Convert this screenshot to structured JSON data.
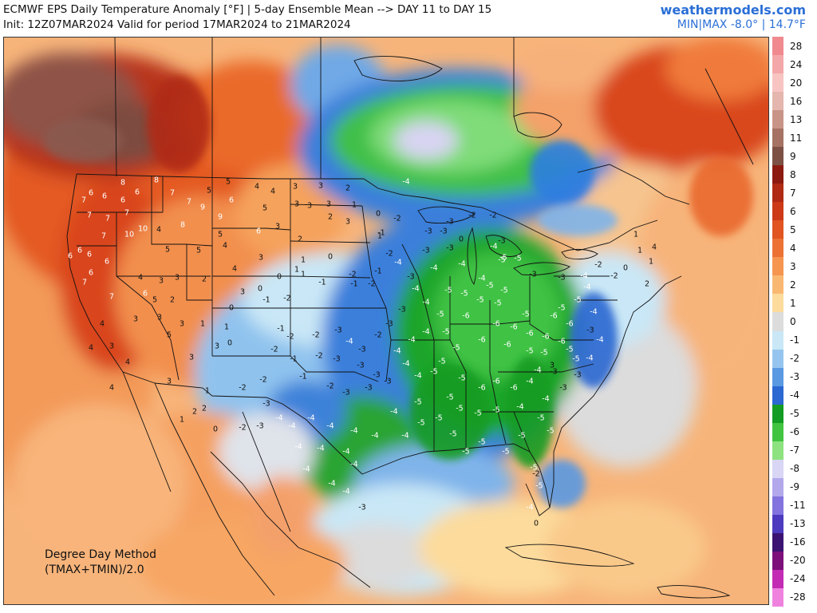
{
  "header": {
    "title_line1": "ECMWF EPS Daily Temperature Anomaly [°F] | 5-day Ensemble Mean --> DAY 11 to DAY 15",
    "title_line2": "Init: 12Z07MAR2024 Valid for period 17MAR2024 to 21MAR2024",
    "brand": "weathermodels.com",
    "minmax": "MIN|MAX -8.0° | 14.7°F"
  },
  "method": {
    "line1": "Degree Day Method",
    "line2": "(TMAX+TMIN)/2.0"
  },
  "colorbar": [
    {
      "label": "28",
      "color": "#f08a8f"
    },
    {
      "label": "24",
      "color": "#f4a7a9"
    },
    {
      "label": "20",
      "color": "#f7c4c2"
    },
    {
      "label": "16",
      "color": "#e4b6ad"
    },
    {
      "label": "13",
      "color": "#c99488"
    },
    {
      "label": "11",
      "color": "#a57264"
    },
    {
      "label": "9",
      "color": "#7d5045"
    },
    {
      "label": "8",
      "color": "#8c1a10"
    },
    {
      "label": "7",
      "color": "#b02a14"
    },
    {
      "label": "6",
      "color": "#cc3a18"
    },
    {
      "label": "5",
      "color": "#e05520"
    },
    {
      "label": "4",
      "color": "#ec7234"
    },
    {
      "label": "3",
      "color": "#f5954f"
    },
    {
      "label": "2",
      "color": "#f9b872"
    },
    {
      "label": "1",
      "color": "#fcdb9c"
    },
    {
      "label": "0",
      "color": "#dcdcdc"
    },
    {
      "label": "-1",
      "color": "#c9e7f6"
    },
    {
      "label": "-2",
      "color": "#95c5ee"
    },
    {
      "label": "-3",
      "color": "#5a99e2"
    },
    {
      "label": "-4",
      "color": "#2b68d2"
    },
    {
      "label": "-5",
      "color": "#139c23"
    },
    {
      "label": "-6",
      "color": "#42c441"
    },
    {
      "label": "-7",
      "color": "#8ee27f"
    },
    {
      "label": "-8",
      "color": "#d9d5f5"
    },
    {
      "label": "-9",
      "color": "#b2a8ec"
    },
    {
      "label": "-11",
      "color": "#8273de"
    },
    {
      "label": "-13",
      "color": "#4c3bbe"
    },
    {
      "label": "-16",
      "color": "#3b1372"
    },
    {
      "label": "-20",
      "color": "#7d0f7b"
    },
    {
      "label": "-24",
      "color": "#c32bb5"
    },
    {
      "label": "-28",
      "color": "#ef82df"
    }
  ],
  "map": {
    "values": [
      [
        "8",
        150,
        183
      ],
      [
        "8",
        192,
        180
      ],
      [
        "6",
        110,
        196
      ],
      [
        "7",
        101,
        205
      ],
      [
        "6",
        127,
        200
      ],
      [
        "6",
        150,
        205
      ],
      [
        "6",
        168,
        195
      ],
      [
        "7",
        212,
        196
      ],
      [
        "7",
        233,
        207
      ],
      [
        "5",
        258,
        193
      ],
      [
        "5",
        282,
        182
      ],
      [
        "4",
        318,
        188
      ],
      [
        "4",
        338,
        194
      ],
      [
        "3",
        366,
        188
      ],
      [
        "3",
        398,
        187
      ],
      [
        "2",
        432,
        190
      ],
      [
        "7",
        108,
        224
      ],
      [
        "7",
        131,
        228
      ],
      [
        "7",
        155,
        221
      ],
      [
        "9",
        250,
        214
      ],
      [
        "6",
        286,
        205
      ],
      [
        "5",
        328,
        215
      ],
      [
        "3",
        368,
        210
      ],
      [
        "3",
        384,
        212
      ],
      [
        "3",
        408,
        210
      ],
      [
        "1",
        440,
        211
      ],
      [
        "0",
        470,
        222
      ],
      [
        "10",
        158,
        248
      ],
      [
        "10",
        175,
        241
      ],
      [
        "7",
        126,
        250
      ],
      [
        "6",
        96,
        268
      ],
      [
        "6",
        108,
        273
      ],
      [
        "8",
        225,
        236
      ],
      [
        "9",
        272,
        226
      ],
      [
        "4",
        195,
        242
      ],
      [
        "5",
        272,
        248
      ],
      [
        "6",
        320,
        244
      ],
      [
        "2",
        410,
        226
      ],
      [
        "3",
        432,
        232
      ],
      [
        "1",
        472,
        250
      ],
      [
        "5",
        206,
        267
      ],
      [
        "5",
        245,
        268
      ],
      [
        "4",
        278,
        262
      ],
      [
        "3",
        344,
        238
      ],
      [
        "2",
        372,
        254
      ],
      [
        "6",
        130,
        282
      ],
      [
        "6",
        84,
        275
      ],
      [
        "6",
        110,
        296
      ],
      [
        "4",
        172,
        302
      ],
      [
        "3",
        198,
        306
      ],
      [
        "3",
        218,
        302
      ],
      [
        "2",
        252,
        304
      ],
      [
        "4",
        290,
        291
      ],
      [
        "3",
        323,
        277
      ],
      [
        "1",
        376,
        280
      ],
      [
        "1",
        368,
        292
      ],
      [
        "0",
        410,
        276
      ],
      [
        "7",
        102,
        308
      ],
      [
        "7",
        136,
        326
      ],
      [
        "6",
        178,
        322
      ],
      [
        "5",
        190,
        330
      ],
      [
        "2",
        212,
        330
      ],
      [
        "0",
        286,
        340
      ],
      [
        "3",
        300,
        320
      ],
      [
        "0",
        322,
        316
      ],
      [
        "0",
        346,
        301
      ],
      [
        "1",
        376,
        298
      ],
      [
        "-1",
        330,
        330
      ],
      [
        "-2",
        356,
        328
      ],
      [
        "-1",
        400,
        308
      ],
      [
        "-1",
        440,
        310
      ],
      [
        "-2",
        462,
        310
      ],
      [
        "-1",
        474,
        246
      ],
      [
        "-2",
        494,
        228
      ],
      [
        "-4",
        505,
        182
      ],
      [
        "-3",
        533,
        244
      ],
      [
        "-3",
        552,
        244
      ],
      [
        "-3",
        560,
        232
      ],
      [
        "-2",
        588,
        224
      ],
      [
        "-2",
        614,
        224
      ],
      [
        "-3",
        530,
        268
      ],
      [
        "-3",
        560,
        265
      ],
      [
        "0",
        574,
        254
      ],
      [
        "-3",
        625,
        256
      ],
      [
        "-4",
        615,
        263
      ],
      [
        "-5",
        627,
        277
      ],
      [
        "-4",
        495,
        283
      ],
      [
        "-3",
        511,
        301
      ],
      [
        "-4",
        540,
        290
      ],
      [
        "-4",
        575,
        285
      ],
      [
        "-5",
        625,
        280
      ],
      [
        "-5",
        645,
        278
      ],
      [
        "-4",
        600,
        303
      ],
      [
        "-5",
        610,
        312
      ],
      [
        "-5",
        628,
        318
      ],
      [
        "-3",
        664,
        298
      ],
      [
        "-3",
        700,
        302
      ],
      [
        "-4",
        728,
        300
      ],
      [
        "-4",
        732,
        314
      ],
      [
        "-2",
        746,
        286
      ],
      [
        "-2",
        766,
        300
      ],
      [
        "0",
        780,
        290
      ],
      [
        "1",
        793,
        248
      ],
      [
        "1",
        798,
        268
      ],
      [
        "1",
        812,
        282
      ],
      [
        "4",
        816,
        264
      ],
      [
        "2",
        807,
        310
      ],
      [
        "-4",
        517,
        316
      ],
      [
        "-4",
        530,
        333
      ],
      [
        "-5",
        558,
        318
      ],
      [
        "-5",
        578,
        322
      ],
      [
        "-5",
        598,
        330
      ],
      [
        "-5",
        620,
        334
      ],
      [
        "-5",
        655,
        348
      ],
      [
        "-5",
        700,
        340
      ],
      [
        "-5",
        720,
        330
      ],
      [
        "-6",
        690,
        350
      ],
      [
        "-6",
        710,
        360
      ],
      [
        "-4",
        740,
        345
      ],
      [
        "-3",
        736,
        368
      ],
      [
        "-4",
        748,
        380
      ],
      [
        "-6",
        580,
        350
      ],
      [
        "-6",
        618,
        360
      ],
      [
        "-6",
        640,
        364
      ],
      [
        "-6",
        660,
        372
      ],
      [
        "-6",
        680,
        376
      ],
      [
        "-6",
        700,
        382
      ],
      [
        "-5",
        548,
        348
      ],
      [
        "-5",
        555,
        370
      ],
      [
        "-5",
        568,
        390
      ],
      [
        "-6",
        600,
        380
      ],
      [
        "-6",
        632,
        386
      ],
      [
        "-5",
        660,
        394
      ],
      [
        "-5",
        678,
        396
      ],
      [
        "-5",
        710,
        392
      ],
      [
        "-5",
        718,
        404
      ],
      [
        "-4",
        735,
        403
      ],
      [
        "-4",
        530,
        370
      ],
      [
        "-4",
        512,
        380
      ],
      [
        "-4",
        494,
        394
      ],
      [
        "-4",
        505,
        410
      ],
      [
        "-4",
        520,
        425
      ],
      [
        "-5",
        540,
        420
      ],
      [
        "-5",
        550,
        407
      ],
      [
        "-5",
        575,
        428
      ],
      [
        "-6",
        600,
        440
      ],
      [
        "-6",
        618,
        432
      ],
      [
        "-6",
        640,
        440
      ],
      [
        "-4",
        660,
        432
      ],
      [
        "-4",
        670,
        418
      ],
      [
        "-3",
        690,
        420
      ],
      [
        "-3",
        720,
        424
      ],
      [
        "-5",
        560,
        452
      ],
      [
        "-5",
        572,
        466
      ],
      [
        "-5",
        595,
        472
      ],
      [
        "-5",
        618,
        468
      ],
      [
        "-4",
        648,
        464
      ],
      [
        "-4",
        680,
        454
      ],
      [
        "-5",
        520,
        458
      ],
      [
        "-5",
        524,
        484
      ],
      [
        "-5",
        546,
        478
      ],
      [
        "-5",
        564,
        498
      ],
      [
        "-5",
        580,
        520
      ],
      [
        "-5",
        600,
        508
      ],
      [
        "-5",
        630,
        520
      ],
      [
        "-5",
        650,
        500
      ],
      [
        "-5",
        674,
        478
      ],
      [
        "-5",
        686,
        494
      ],
      [
        "-5",
        665,
        540
      ],
      [
        "-5",
        672,
        563
      ],
      [
        "-4",
        660,
        590
      ],
      [
        "-3",
        500,
        342
      ],
      [
        "-3",
        484,
        360
      ],
      [
        "-2",
        470,
        374
      ],
      [
        "-3",
        450,
        392
      ],
      [
        "-4",
        434,
        382
      ],
      [
        "-3",
        420,
        368
      ],
      [
        "-2",
        392,
        374
      ],
      [
        "-2",
        360,
        376
      ],
      [
        "-1",
        348,
        366
      ],
      [
        "-2",
        340,
        392
      ],
      [
        "-1",
        364,
        404
      ],
      [
        "-2",
        396,
        400
      ],
      [
        "-3",
        418,
        404
      ],
      [
        "-3",
        448,
        412
      ],
      [
        "-3",
        468,
        424
      ],
      [
        "-3",
        482,
        432
      ],
      [
        "-3",
        458,
        440
      ],
      [
        "-3",
        430,
        446
      ],
      [
        "-2",
        410,
        438
      ],
      [
        "-1",
        376,
        426
      ],
      [
        "-2",
        326,
        430
      ],
      [
        "-2",
        300,
        440
      ],
      [
        "-3",
        330,
        460
      ],
      [
        "-4",
        346,
        478
      ],
      [
        "-4",
        362,
        488
      ],
      [
        "-4",
        386,
        478
      ],
      [
        "-4",
        410,
        488
      ],
      [
        "-4",
        440,
        494
      ],
      [
        "-4",
        466,
        500
      ],
      [
        "-4",
        490,
        470
      ],
      [
        "-4",
        504,
        500
      ],
      [
        "-4",
        370,
        514
      ],
      [
        "-4",
        398,
        516
      ],
      [
        "-4",
        430,
        520
      ],
      [
        "-4",
        440,
        536
      ],
      [
        "-4",
        380,
        542
      ],
      [
        "-4",
        412,
        560
      ],
      [
        "-4",
        430,
        570
      ],
      [
        "-3",
        450,
        590
      ],
      [
        "-2",
        300,
        490
      ],
      [
        "-3",
        322,
        488
      ],
      [
        "1",
        256,
        444
      ],
      [
        "2",
        240,
        470
      ],
      [
        "2",
        252,
        466
      ],
      [
        "0",
        266,
        492
      ],
      [
        "1",
        224,
        480
      ],
      [
        "3",
        208,
        432
      ],
      [
        "4",
        136,
        440
      ],
      [
        "4",
        156,
        408
      ],
      [
        "3",
        136,
        388
      ],
      [
        "4",
        124,
        360
      ],
      [
        "3",
        166,
        354
      ],
      [
        "3",
        196,
        352
      ],
      [
        "5",
        208,
        374
      ],
      [
        "3",
        236,
        402
      ],
      [
        "3",
        268,
        388
      ],
      [
        "0",
        284,
        384
      ],
      [
        "1",
        250,
        360
      ],
      [
        "1",
        280,
        364
      ],
      [
        "4",
        110,
        390
      ],
      [
        "3",
        224,
        360
      ],
      [
        "-2",
        484,
        272
      ],
      [
        "-1",
        470,
        294
      ],
      [
        "-2",
        438,
        298
      ],
      [
        "3",
        688,
        412
      ],
      [
        "-3",
        702,
        440
      ],
      [
        "-2",
        668,
        548
      ],
      [
        "0",
        668,
        610
      ],
      [
        "2",
        872,
        716
      ]
    ]
  }
}
